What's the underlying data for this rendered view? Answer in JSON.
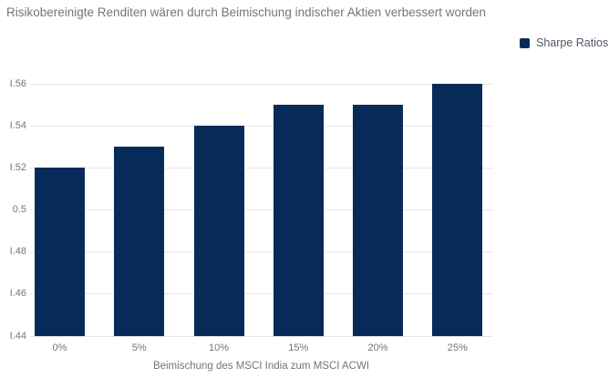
{
  "chart_data": {
    "type": "bar",
    "title": "Risikobereinigte Renditen wären durch Beimischung indischer Aktien verbessert worden",
    "xlabel": "Beimischung des MSCI India zum MSCI ACWI",
    "ylabel": "",
    "categories": [
      "0%",
      "5%",
      "10%",
      "15%",
      "20%",
      "25%"
    ],
    "series": [
      {
        "name": "Sharpe Ratios",
        "values": [
          0.52,
          0.53,
          0.54,
          0.55,
          0.55,
          0.56
        ]
      }
    ],
    "ylim": [
      0.44,
      0.56
    ],
    "yticks": [
      0.44,
      0.46,
      0.48,
      0.5,
      0.52,
      0.54,
      0.56
    ],
    "ytick_labels": [
      "I.44",
      "I.46",
      "I.48",
      "0.5",
      "I.52",
      "I.54",
      "I.56"
    ],
    "grid": true,
    "legend_position": "top-right",
    "colors": {
      "bar": "#072b58",
      "title_text": "#757575",
      "axis_text": "#757575",
      "legend_text": "#4f5a68",
      "gridline": "#e6e6e6"
    }
  }
}
